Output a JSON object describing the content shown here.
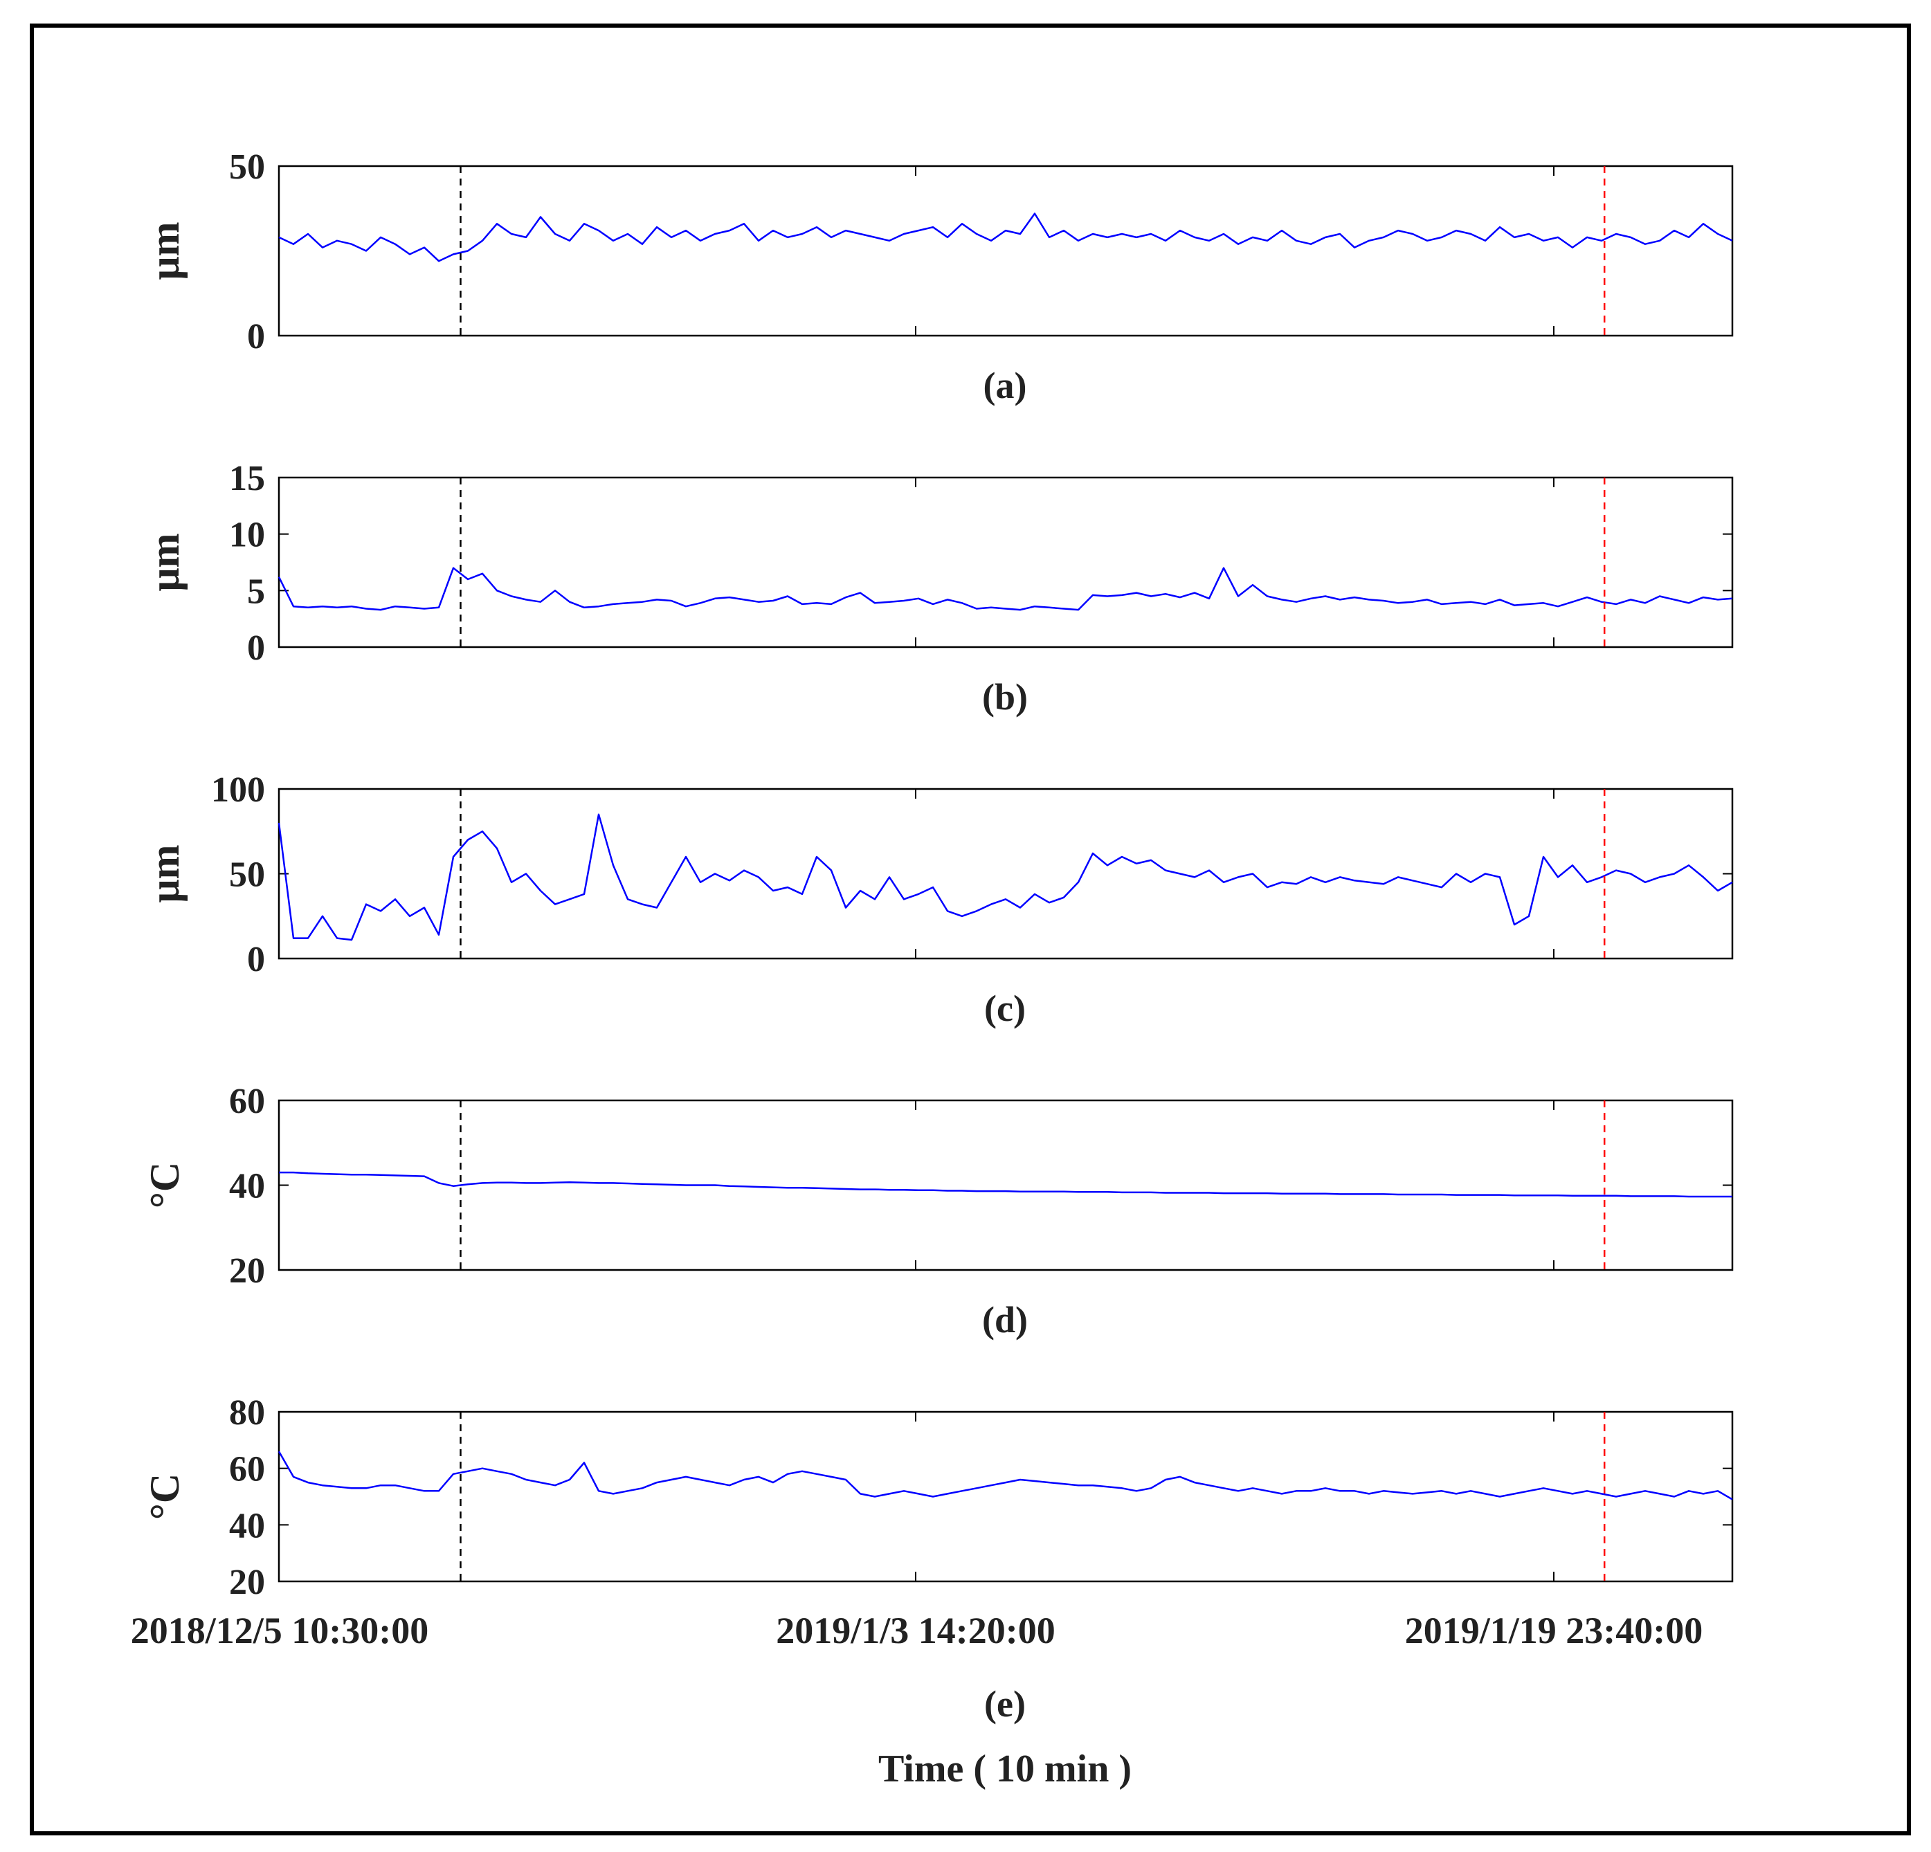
{
  "figure": {
    "x_axis_label": "Time ( 10 min )",
    "x_tick_labels": [
      "2018/12/5 10:30:00",
      "2019/1/3 14:20:00",
      "2019/1/19 23:40:00"
    ],
    "line_color": "#0000ff",
    "black_marker_color": "#000000",
    "red_marker_color": "#ff0000",
    "frame_color": "#000000"
  },
  "chart_data": [
    {
      "type": "line",
      "panel_label": "(a)",
      "ylabel": "μm",
      "ylim": [
        0,
        50
      ],
      "yticks": [
        0,
        50
      ],
      "x": [
        0,
        1,
        2,
        3,
        4,
        5,
        6,
        7,
        8,
        9,
        10,
        11,
        12,
        13,
        14,
        15,
        16,
        17,
        18,
        19,
        20,
        21,
        22,
        23,
        24,
        25,
        26,
        27,
        28,
        29,
        30,
        31,
        32,
        33,
        34,
        35,
        36,
        37,
        38,
        39,
        40,
        41,
        42,
        43,
        44,
        45,
        46,
        47,
        48,
        49,
        50,
        51,
        52,
        53,
        54,
        55,
        56,
        57,
        58,
        59,
        60,
        61,
        62,
        63,
        64,
        65,
        66,
        67,
        68,
        69,
        70,
        71,
        72,
        73,
        74,
        75,
        76,
        77,
        78,
        79,
        80,
        81,
        82,
        83,
        84,
        85,
        86,
        87,
        88,
        89,
        90,
        91,
        92,
        93,
        94,
        95,
        96,
        97,
        98,
        99,
        100
      ],
      "series": [
        {
          "values": [
            29,
            27,
            30,
            26,
            28,
            27,
            25,
            29,
            27,
            24,
            26,
            22,
            24,
            25,
            28,
            33,
            30,
            29,
            35,
            30,
            28,
            33,
            31,
            28,
            30,
            27,
            32,
            29,
            31,
            28,
            30,
            31,
            33,
            28,
            31,
            29,
            30,
            32,
            29,
            31,
            30,
            29,
            28,
            30,
            31,
            32,
            29,
            33,
            30,
            28,
            31,
            30,
            36,
            29,
            31,
            28,
            30,
            29,
            30,
            29,
            30,
            28,
            31,
            29,
            28,
            30,
            27,
            29,
            28,
            31,
            28,
            27,
            29,
            30,
            26,
            28,
            29,
            31,
            30,
            28,
            29,
            31,
            30,
            28,
            32,
            29,
            30,
            28,
            29,
            26,
            29,
            28,
            30,
            29,
            27,
            28,
            31,
            29,
            33,
            30,
            28
          ]
        }
      ],
      "markers": {
        "black_x": 12.5,
        "red_x": 91.2
      }
    },
    {
      "type": "line",
      "panel_label": "(b)",
      "ylabel": "μm",
      "ylim": [
        0,
        15
      ],
      "yticks": [
        0,
        5,
        10,
        15
      ],
      "x": [
        0,
        1,
        2,
        3,
        4,
        5,
        6,
        7,
        8,
        9,
        10,
        11,
        12,
        13,
        14,
        15,
        16,
        17,
        18,
        19,
        20,
        21,
        22,
        23,
        24,
        25,
        26,
        27,
        28,
        29,
        30,
        31,
        32,
        33,
        34,
        35,
        36,
        37,
        38,
        39,
        40,
        41,
        42,
        43,
        44,
        45,
        46,
        47,
        48,
        49,
        50,
        51,
        52,
        53,
        54,
        55,
        56,
        57,
        58,
        59,
        60,
        61,
        62,
        63,
        64,
        65,
        66,
        67,
        68,
        69,
        70,
        71,
        72,
        73,
        74,
        75,
        76,
        77,
        78,
        79,
        80,
        81,
        82,
        83,
        84,
        85,
        86,
        87,
        88,
        89,
        90,
        91,
        92,
        93,
        94,
        95,
        96,
        97,
        98,
        99,
        100
      ],
      "series": [
        {
          "values": [
            6.2,
            3.6,
            3.5,
            3.6,
            3.5,
            3.6,
            3.4,
            3.3,
            3.6,
            3.5,
            3.4,
            3.5,
            7.0,
            6.0,
            6.5,
            5.0,
            4.5,
            4.2,
            4.0,
            5.0,
            4.0,
            3.5,
            3.6,
            3.8,
            3.9,
            4.0,
            4.2,
            4.1,
            3.6,
            3.9,
            4.3,
            4.4,
            4.2,
            4.0,
            4.1,
            4.5,
            3.8,
            3.9,
            3.8,
            4.4,
            4.8,
            3.9,
            4.0,
            4.1,
            4.3,
            3.8,
            4.2,
            3.9,
            3.4,
            3.5,
            3.4,
            3.3,
            3.6,
            3.5,
            3.4,
            3.3,
            4.6,
            4.5,
            4.6,
            4.8,
            4.5,
            4.7,
            4.4,
            4.8,
            4.3,
            7.0,
            4.5,
            5.5,
            4.5,
            4.2,
            4.0,
            4.3,
            4.5,
            4.2,
            4.4,
            4.2,
            4.1,
            3.9,
            4.0,
            4.2,
            3.8,
            3.9,
            4.0,
            3.8,
            4.2,
            3.7,
            3.8,
            3.9,
            3.6,
            4.0,
            4.4,
            4.0,
            3.8,
            4.2,
            3.9,
            4.5,
            4.2,
            3.9,
            4.4,
            4.2,
            4.3
          ]
        }
      ],
      "markers": {
        "black_x": 12.5,
        "red_x": 91.2
      }
    },
    {
      "type": "line",
      "panel_label": "(c)",
      "ylabel": "μm",
      "ylim": [
        0,
        100
      ],
      "yticks": [
        0,
        50,
        100
      ],
      "x": [
        0,
        1,
        2,
        3,
        4,
        5,
        6,
        7,
        8,
        9,
        10,
        11,
        12,
        13,
        14,
        15,
        16,
        17,
        18,
        19,
        20,
        21,
        22,
        23,
        24,
        25,
        26,
        27,
        28,
        29,
        30,
        31,
        32,
        33,
        34,
        35,
        36,
        37,
        38,
        39,
        40,
        41,
        42,
        43,
        44,
        45,
        46,
        47,
        48,
        49,
        50,
        51,
        52,
        53,
        54,
        55,
        56,
        57,
        58,
        59,
        60,
        61,
        62,
        63,
        64,
        65,
        66,
        67,
        68,
        69,
        70,
        71,
        72,
        73,
        74,
        75,
        76,
        77,
        78,
        79,
        80,
        81,
        82,
        83,
        84,
        85,
        86,
        87,
        88,
        89,
        90,
        91,
        92,
        93,
        94,
        95,
        96,
        97,
        98,
        99,
        100
      ],
      "series": [
        {
          "values": [
            80,
            12,
            12,
            25,
            12,
            11,
            32,
            28,
            35,
            25,
            30,
            14,
            60,
            70,
            75,
            65,
            45,
            50,
            40,
            32,
            35,
            38,
            85,
            55,
            35,
            32,
            30,
            45,
            60,
            45,
            50,
            46,
            52,
            48,
            40,
            42,
            38,
            60,
            52,
            30,
            40,
            35,
            48,
            35,
            38,
            42,
            28,
            25,
            28,
            32,
            35,
            30,
            38,
            33,
            36,
            45,
            62,
            55,
            60,
            56,
            58,
            52,
            50,
            48,
            52,
            45,
            48,
            50,
            42,
            45,
            44,
            48,
            45,
            48,
            46,
            45,
            44,
            48,
            46,
            44,
            42,
            50,
            45,
            50,
            48,
            20,
            25,
            60,
            48,
            55,
            45,
            48,
            52,
            50,
            45,
            48,
            50,
            55,
            48,
            40,
            45
          ]
        }
      ],
      "markers": {
        "black_x": 12.5,
        "red_x": 91.2
      }
    },
    {
      "type": "line",
      "panel_label": "(d)",
      "ylabel": "°C",
      "ylim": [
        20,
        60
      ],
      "yticks": [
        20,
        40,
        60
      ],
      "x": [
        0,
        1,
        2,
        3,
        4,
        5,
        6,
        7,
        8,
        9,
        10,
        11,
        12,
        13,
        14,
        15,
        16,
        17,
        18,
        19,
        20,
        21,
        22,
        23,
        24,
        25,
        26,
        27,
        28,
        29,
        30,
        31,
        32,
        33,
        34,
        35,
        36,
        37,
        38,
        39,
        40,
        41,
        42,
        43,
        44,
        45,
        46,
        47,
        48,
        49,
        50,
        51,
        52,
        53,
        54,
        55,
        56,
        57,
        58,
        59,
        60,
        61,
        62,
        63,
        64,
        65,
        66,
        67,
        68,
        69,
        70,
        71,
        72,
        73,
        74,
        75,
        76,
        77,
        78,
        79,
        80,
        81,
        82,
        83,
        84,
        85,
        86,
        87,
        88,
        89,
        90,
        91,
        92,
        93,
        94,
        95,
        96,
        97,
        98,
        99,
        100
      ],
      "series": [
        {
          "values": [
            43.0,
            43.0,
            42.8,
            42.7,
            42.6,
            42.5,
            42.5,
            42.4,
            42.3,
            42.2,
            42.1,
            40.5,
            39.8,
            40.2,
            40.5,
            40.6,
            40.6,
            40.5,
            40.5,
            40.6,
            40.7,
            40.6,
            40.5,
            40.5,
            40.4,
            40.3,
            40.2,
            40.1,
            40.0,
            40.0,
            40.0,
            39.8,
            39.7,
            39.6,
            39.5,
            39.4,
            39.4,
            39.3,
            39.2,
            39.1,
            39.0,
            39.0,
            38.9,
            38.9,
            38.8,
            38.8,
            38.7,
            38.7,
            38.6,
            38.6,
            38.6,
            38.5,
            38.5,
            38.5,
            38.5,
            38.4,
            38.4,
            38.4,
            38.3,
            38.3,
            38.3,
            38.2,
            38.2,
            38.2,
            38.2,
            38.1,
            38.1,
            38.1,
            38.1,
            38.0,
            38.0,
            38.0,
            38.0,
            37.9,
            37.9,
            37.9,
            37.9,
            37.8,
            37.8,
            37.8,
            37.8,
            37.7,
            37.7,
            37.7,
            37.7,
            37.6,
            37.6,
            37.6,
            37.6,
            37.5,
            37.5,
            37.5,
            37.5,
            37.4,
            37.4,
            37.4,
            37.4,
            37.3,
            37.3,
            37.3,
            37.3
          ]
        }
      ],
      "markers": {
        "black_x": 12.5,
        "red_x": 91.2
      }
    },
    {
      "type": "line",
      "panel_label": "(e)",
      "ylabel": "°C",
      "ylim": [
        20,
        80
      ],
      "yticks": [
        20,
        40,
        60,
        80
      ],
      "x": [
        0,
        1,
        2,
        3,
        4,
        5,
        6,
        7,
        8,
        9,
        10,
        11,
        12,
        13,
        14,
        15,
        16,
        17,
        18,
        19,
        20,
        21,
        22,
        23,
        24,
        25,
        26,
        27,
        28,
        29,
        30,
        31,
        32,
        33,
        34,
        35,
        36,
        37,
        38,
        39,
        40,
        41,
        42,
        43,
        44,
        45,
        46,
        47,
        48,
        49,
        50,
        51,
        52,
        53,
        54,
        55,
        56,
        57,
        58,
        59,
        60,
        61,
        62,
        63,
        64,
        65,
        66,
        67,
        68,
        69,
        70,
        71,
        72,
        73,
        74,
        75,
        76,
        77,
        78,
        79,
        80,
        81,
        82,
        83,
        84,
        85,
        86,
        87,
        88,
        89,
        90,
        91,
        92,
        93,
        94,
        95,
        96,
        97,
        98,
        99,
        100
      ],
      "series": [
        {
          "values": [
            66,
            57,
            55,
            54,
            53.5,
            53,
            53,
            54,
            54,
            53,
            52,
            52,
            58,
            59,
            60,
            59,
            58,
            56,
            55,
            54,
            56,
            62,
            52,
            51,
            52,
            53,
            55,
            56,
            57,
            56,
            55,
            54,
            56,
            57,
            55,
            58,
            59,
            58,
            57,
            56,
            51,
            50,
            51,
            52,
            51,
            50,
            51,
            52,
            53,
            54,
            55,
            56,
            55.5,
            55,
            54.5,
            54,
            54,
            53.5,
            53,
            52,
            53,
            56,
            57,
            55,
            54,
            53,
            52,
            53,
            52,
            51,
            52,
            52,
            53,
            52,
            52,
            51,
            52,
            51.5,
            51,
            51.5,
            52,
            51,
            52,
            51,
            50,
            51,
            52,
            53,
            52,
            51,
            52,
            51,
            50,
            51,
            52,
            51,
            50,
            52,
            51,
            52,
            49
          ]
        }
      ],
      "markers": {
        "black_x": 12.5,
        "red_x": 91.2
      }
    }
  ]
}
